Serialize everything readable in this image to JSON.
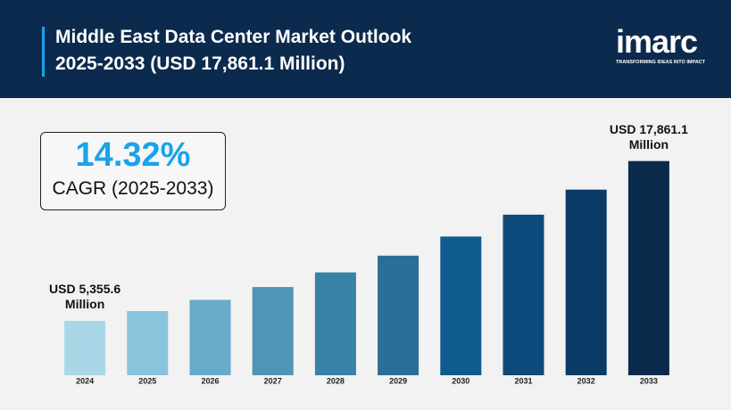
{
  "header": {
    "title_line1": "Middle East Data Center Market Outlook",
    "title_line2": "2025-2033 (USD 17,861.1 Million)",
    "logo": "imarc",
    "tagline": "TRANSFORMING IDEAS INTO IMPACT"
  },
  "cagr": {
    "value": "14.32%",
    "label": "CAGR (2025-2033)"
  },
  "chart_data": {
    "type": "bar",
    "categories": [
      "2024",
      "2025",
      "2026",
      "2027",
      "2028",
      "2029",
      "2030",
      "2031",
      "2032",
      "2033"
    ],
    "values": [
      5355.6,
      6122,
      6999,
      8002,
      9148,
      10458,
      11955,
      13667,
      15625,
      17861.1
    ],
    "value_labels": [
      "USD 5,355.6 Million",
      null,
      null,
      null,
      null,
      null,
      null,
      null,
      null,
      "USD 17,861.1 Million"
    ],
    "colors": [
      "#a9d7e8",
      "#8ac3dc",
      "#68abc9",
      "#4e95b6",
      "#3782a7",
      "#2b6e97",
      "#0f5b90",
      "#0c4a7c",
      "#0a3a66",
      "#0a2a4c"
    ],
    "ylim": [
      1100,
      20700
    ]
  }
}
